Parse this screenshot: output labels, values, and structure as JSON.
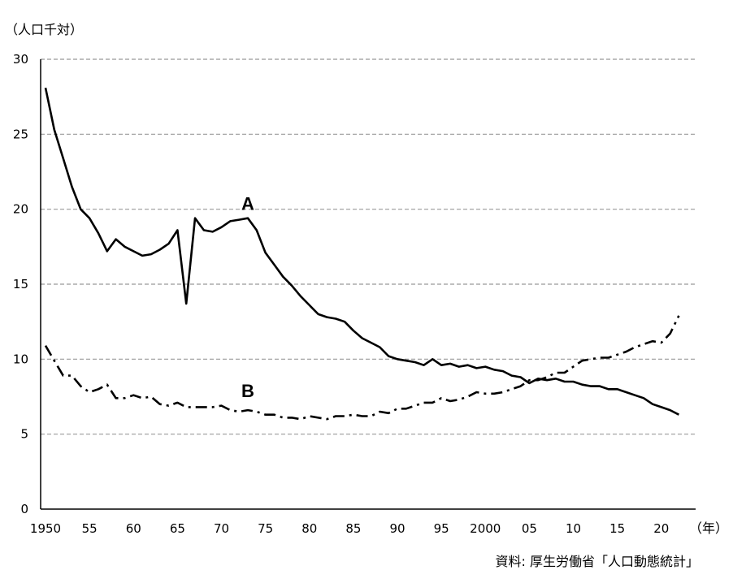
{
  "chart_data": {
    "type": "line",
    "y_unit_label": "（人口千対）",
    "x_unit_label": "（年）",
    "source": "資料: 厚生労働省「人口動態統計」",
    "ylim": [
      0,
      30
    ],
    "xlim": [
      1950,
      2022
    ],
    "grid": "horizontal dashed",
    "y_ticks": [
      {
        "value": 0,
        "label": "0"
      },
      {
        "value": 5,
        "label": "5"
      },
      {
        "value": 10,
        "label": "10"
      },
      {
        "value": 15,
        "label": "15"
      },
      {
        "value": 20,
        "label": "20"
      },
      {
        "value": 25,
        "label": "25"
      },
      {
        "value": 30,
        "label": "30"
      }
    ],
    "x_ticks": [
      {
        "value": 1950,
        "label": "1950"
      },
      {
        "value": 1955,
        "label": "55"
      },
      {
        "value": 1960,
        "label": "60"
      },
      {
        "value": 1965,
        "label": "65"
      },
      {
        "value": 1970,
        "label": "70"
      },
      {
        "value": 1975,
        "label": "75"
      },
      {
        "value": 1980,
        "label": "80"
      },
      {
        "value": 1985,
        "label": "85"
      },
      {
        "value": 1990,
        "label": "90"
      },
      {
        "value": 1995,
        "label": "95"
      },
      {
        "value": 2000,
        "label": "2000"
      },
      {
        "value": 2005,
        "label": "05"
      },
      {
        "value": 2010,
        "label": "10"
      },
      {
        "value": 2015,
        "label": "15"
      },
      {
        "value": 2020,
        "label": "20"
      }
    ],
    "series": [
      {
        "name": "A",
        "style": "solid",
        "color": "#000000",
        "label_at": [
          1973,
          20.4
        ],
        "x": [
          1950,
          1951,
          1952,
          1953,
          1954,
          1955,
          1956,
          1957,
          1958,
          1959,
          1960,
          1961,
          1962,
          1963,
          1964,
          1965,
          1966,
          1967,
          1968,
          1969,
          1970,
          1971,
          1972,
          1973,
          1974,
          1975,
          1976,
          1977,
          1978,
          1979,
          1980,
          1981,
          1982,
          1983,
          1984,
          1985,
          1986,
          1987,
          1988,
          1989,
          1990,
          1991,
          1992,
          1993,
          1994,
          1995,
          1996,
          1997,
          1998,
          1999,
          2000,
          2001,
          2002,
          2003,
          2004,
          2005,
          2006,
          2007,
          2008,
          2009,
          2010,
          2011,
          2012,
          2013,
          2014,
          2015,
          2016,
          2017,
          2018,
          2019,
          2020,
          2021,
          2022
        ],
        "values": [
          28.1,
          25.3,
          23.4,
          21.5,
          20.0,
          19.4,
          18.4,
          17.2,
          18.0,
          17.5,
          17.2,
          16.9,
          17.0,
          17.3,
          17.7,
          18.6,
          13.7,
          19.4,
          18.6,
          18.5,
          18.8,
          19.2,
          19.3,
          19.4,
          18.6,
          17.1,
          16.3,
          15.5,
          14.9,
          14.2,
          13.6,
          13.0,
          12.8,
          12.7,
          12.5,
          11.9,
          11.4,
          11.1,
          10.8,
          10.2,
          10.0,
          9.9,
          9.8,
          9.6,
          10.0,
          9.6,
          9.7,
          9.5,
          9.6,
          9.4,
          9.5,
          9.3,
          9.2,
          8.9,
          8.8,
          8.4,
          8.7,
          8.6,
          8.7,
          8.5,
          8.5,
          8.3,
          8.2,
          8.2,
          8.0,
          8.0,
          7.8,
          7.6,
          7.4,
          7.0,
          6.8,
          6.6,
          6.3
        ]
      },
      {
        "name": "B",
        "style": "dash-dot",
        "color": "#000000",
        "label_at": [
          1973,
          7.9
        ],
        "x": [
          1950,
          1951,
          1952,
          1953,
          1954,
          1955,
          1956,
          1957,
          1958,
          1959,
          1960,
          1961,
          1962,
          1963,
          1964,
          1965,
          1966,
          1967,
          1968,
          1969,
          1970,
          1971,
          1972,
          1973,
          1974,
          1975,
          1976,
          1977,
          1978,
          1979,
          1980,
          1981,
          1982,
          1983,
          1984,
          1985,
          1986,
          1987,
          1988,
          1989,
          1990,
          1991,
          1992,
          1993,
          1994,
          1995,
          1996,
          1997,
          1998,
          1999,
          2000,
          2001,
          2002,
          2003,
          2004,
          2005,
          2006,
          2007,
          2008,
          2009,
          2010,
          2011,
          2012,
          2013,
          2014,
          2015,
          2016,
          2017,
          2018,
          2019,
          2020,
          2021,
          2022
        ],
        "values": [
          10.9,
          9.9,
          8.9,
          8.9,
          8.2,
          7.8,
          8.0,
          8.3,
          7.4,
          7.4,
          7.6,
          7.4,
          7.5,
          7.0,
          6.9,
          7.1,
          6.8,
          6.8,
          6.8,
          6.8,
          6.9,
          6.6,
          6.5,
          6.6,
          6.5,
          6.3,
          6.3,
          6.1,
          6.1,
          6.0,
          6.2,
          6.1,
          6.0,
          6.2,
          6.2,
          6.3,
          6.2,
          6.2,
          6.5,
          6.4,
          6.7,
          6.7,
          6.9,
          7.1,
          7.1,
          7.4,
          7.2,
          7.3,
          7.5,
          7.8,
          7.7,
          7.7,
          7.8,
          8.0,
          8.2,
          8.6,
          8.6,
          8.8,
          9.1,
          9.1,
          9.5,
          9.9,
          10.0,
          10.1,
          10.1,
          10.3,
          10.5,
          10.8,
          11.0,
          11.2,
          11.1,
          11.7,
          12.9
        ]
      }
    ]
  }
}
